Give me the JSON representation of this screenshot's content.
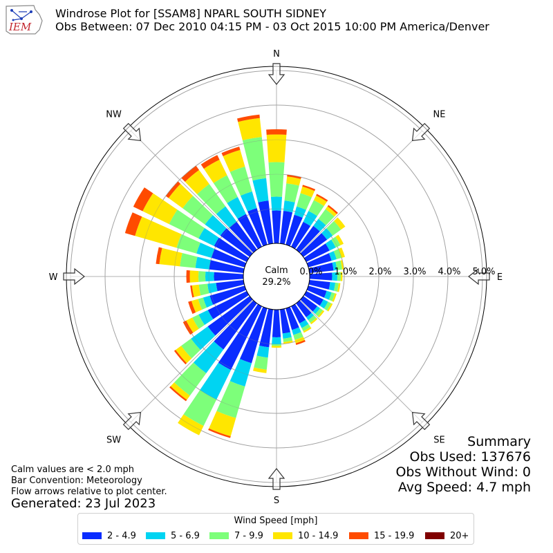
{
  "header": {
    "logo_text": "IEM",
    "title_line1": "Windrose Plot for [SSAM8] NPARL SOUTH SIDNEY",
    "title_line2": "Obs Between: 07 Dec 2010 04:15 PM - 03 Oct 2015 10:00 PM America/Denver"
  },
  "notes": {
    "calm_note": "Calm values are < 2.0 mph",
    "bar_convention": "Bar Convention: Meteorology",
    "flow_note": "Flow arrows relative to plot center.",
    "generated": "Generated: 23 Jul 2023"
  },
  "summary": {
    "title": "Summary",
    "obs_used": "Obs Used: 137676",
    "obs_without_wind": "Obs Without Wind: 0",
    "avg_speed": "Avg Speed: 4.7 mph"
  },
  "legend": {
    "title": "Wind Speed [mph]",
    "items": [
      {
        "label": "2 - 4.9",
        "color": "#0a2cff"
      },
      {
        "label": "5 - 6.9",
        "color": "#00d4f2"
      },
      {
        "label": "7 - 9.9",
        "color": "#7dff7a"
      },
      {
        "label": "10 - 14.9",
        "color": "#ffe600"
      },
      {
        "label": "15 - 19.9",
        "color": "#ff4b00"
      },
      {
        "label": "20+",
        "color": "#7f0000"
      }
    ]
  },
  "chart_data": {
    "type": "windrose",
    "title": "Windrose Plot for [SSAM8] NPARL SOUTH SIDNEY",
    "calm_label": "Calm",
    "calm_value": "29.2%",
    "compass_labels": [
      "N",
      "NE",
      "E",
      "SE",
      "S",
      "SW",
      "W",
      "NW"
    ],
    "ring_labels": [
      "0.0%",
      "1.0%",
      "2.0%",
      "3.0%",
      "4.0%",
      "5.0%"
    ],
    "rmax": 5.0,
    "direction_step_deg": 10,
    "bins": [
      "2 - 4.9",
      "5 - 6.9",
      "7 - 9.9",
      "10 - 14.9",
      "15 - 19.9",
      "20+"
    ],
    "series_cumulative_percent": [
      {
        "dir": 0,
        "values": [
          0.95,
          1.35,
          2.35,
          3.15,
          3.3,
          3.3
        ]
      },
      {
        "dir": 10,
        "values": [
          0.95,
          1.25,
          1.75,
          1.95,
          2.0,
          2.0
        ]
      },
      {
        "dir": 20,
        "values": [
          0.9,
          1.15,
          1.55,
          1.75,
          1.8,
          1.8
        ]
      },
      {
        "dir": 30,
        "values": [
          0.8,
          1.15,
          1.5,
          1.65,
          1.7,
          1.7
        ]
      },
      {
        "dir": 40,
        "values": [
          0.85,
          1.1,
          1.45,
          1.55,
          1.6,
          1.6
        ]
      },
      {
        "dir": 50,
        "values": [
          0.85,
          1.05,
          1.35,
          1.5,
          1.5,
          1.5
        ]
      },
      {
        "dir": 60,
        "values": [
          0.75,
          0.95,
          1.1,
          1.2,
          1.2,
          1.2
        ]
      },
      {
        "dir": 70,
        "values": [
          0.7,
          0.85,
          1.0,
          1.1,
          1.1,
          1.1
        ]
      },
      {
        "dir": 80,
        "values": [
          0.7,
          0.8,
          0.95,
          1.0,
          1.0,
          1.0
        ]
      },
      {
        "dir": 90,
        "values": [
          0.65,
          0.8,
          0.9,
          0.95,
          0.95,
          0.95
        ]
      },
      {
        "dir": 100,
        "values": [
          0.6,
          0.75,
          0.85,
          0.9,
          0.9,
          0.9
        ]
      },
      {
        "dir": 110,
        "values": [
          0.55,
          0.7,
          0.8,
          0.85,
          0.85,
          0.85
        ]
      },
      {
        "dir": 120,
        "values": [
          0.55,
          0.7,
          0.8,
          0.85,
          0.85,
          0.85
        ]
      },
      {
        "dir": 130,
        "values": [
          0.5,
          0.6,
          0.7,
          0.75,
          0.75,
          0.75
        ]
      },
      {
        "dir": 140,
        "values": [
          0.5,
          0.6,
          0.7,
          0.75,
          0.75,
          0.75
        ]
      },
      {
        "dir": 150,
        "values": [
          0.55,
          0.7,
          0.8,
          0.85,
          0.85,
          0.85
        ]
      },
      {
        "dir": 160,
        "values": [
          0.65,
          0.8,
          0.95,
          1.05,
          1.1,
          1.1
        ]
      },
      {
        "dir": 170,
        "values": [
          0.7,
          0.85,
          0.95,
          1.0,
          1.0,
          1.0
        ]
      },
      {
        "dir": 180,
        "values": [
          0.8,
          1.0,
          1.05,
          1.1,
          1.1,
          1.1
        ]
      },
      {
        "dir": 190,
        "values": [
          1.1,
          1.4,
          1.75,
          1.85,
          1.85,
          1.85
        ]
      },
      {
        "dir": 200,
        "values": [
          1.65,
          2.35,
          3.3,
          3.85,
          3.9,
          3.9
        ]
      },
      {
        "dir": 210,
        "values": [
          2.05,
          3.0,
          3.85,
          4.15,
          4.15,
          4.15
        ]
      },
      {
        "dir": 220,
        "values": [
          1.65,
          2.5,
          3.3,
          3.45,
          3.5,
          3.5
        ]
      },
      {
        "dir": 230,
        "values": [
          1.5,
          2.1,
          2.45,
          2.65,
          2.7,
          2.7
        ]
      },
      {
        "dir": 240,
        "values": [
          1.25,
          1.55,
          1.75,
          1.95,
          2.05,
          2.05
        ]
      },
      {
        "dir": 250,
        "values": [
          1.05,
          1.25,
          1.4,
          1.6,
          1.7,
          1.7
        ]
      },
      {
        "dir": 260,
        "values": [
          0.8,
          1.05,
          1.3,
          1.5,
          1.55,
          1.55
        ]
      },
      {
        "dir": 270,
        "values": [
          0.85,
          1.1,
          1.3,
          1.55,
          1.65,
          1.65
        ]
      },
      {
        "dir": 280,
        "values": [
          1.0,
          1.4,
          1.85,
          2.45,
          2.55,
          2.55
        ]
      },
      {
        "dir": 290,
        "values": [
          1.0,
          1.45,
          2.05,
          3.3,
          3.6,
          3.6
        ]
      },
      {
        "dir": 300,
        "values": [
          1.05,
          1.55,
          2.5,
          3.35,
          3.65,
          3.65
        ]
      },
      {
        "dir": 310,
        "values": [
          1.05,
          1.6,
          2.4,
          2.9,
          3.0,
          3.0
        ]
      },
      {
        "dir": 320,
        "values": [
          1.0,
          1.55,
          2.35,
          2.85,
          3.0,
          3.0
        ]
      },
      {
        "dir": 330,
        "values": [
          1.05,
          1.6,
          2.3,
          2.8,
          2.95,
          2.95
        ]
      },
      {
        "dir": 340,
        "values": [
          1.1,
          1.6,
          2.35,
          2.85,
          2.95,
          2.95
        ]
      },
      {
        "dir": 350,
        "values": [
          1.25,
          1.9,
          3.1,
          3.65,
          3.75,
          3.75
        ]
      }
    ]
  }
}
